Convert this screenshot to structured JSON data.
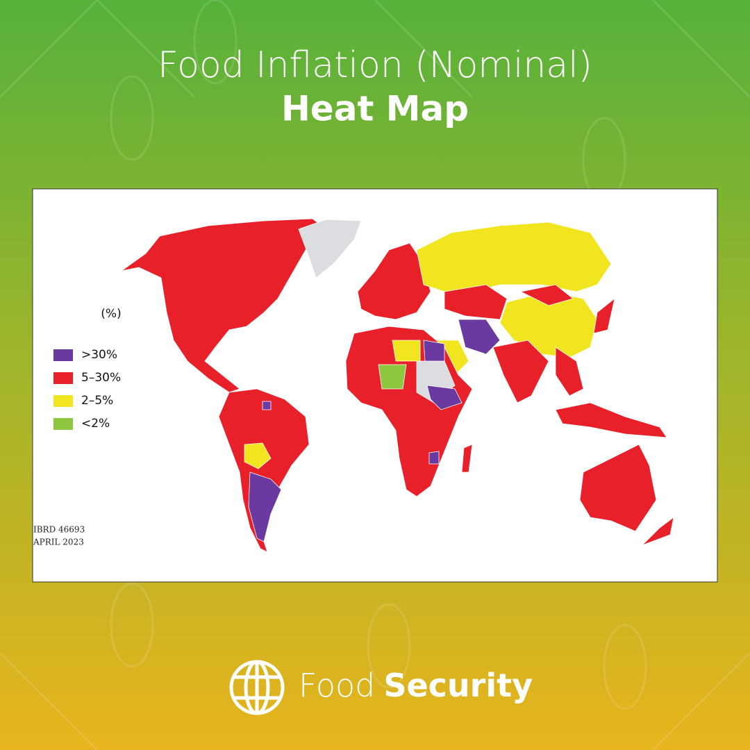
{
  "header": {
    "title": "Food Inflation (Nominal)",
    "subtitle": "Heat Map"
  },
  "map": {
    "legend": {
      "title": "(%)",
      "items": [
        {
          "label": ">30%",
          "color": "#6b3aa0"
        },
        {
          "label": "5–30%",
          "color": "#e8202a"
        },
        {
          "label": "2–5%",
          "color": "#f1e51f"
        },
        {
          "label": "<2%",
          "color": "#8dc63f"
        }
      ]
    },
    "source": [
      "IBRD 46693",
      "APRIL 2023"
    ]
  },
  "footer": {
    "brand_light": "Food",
    "brand_bold": "Security"
  }
}
